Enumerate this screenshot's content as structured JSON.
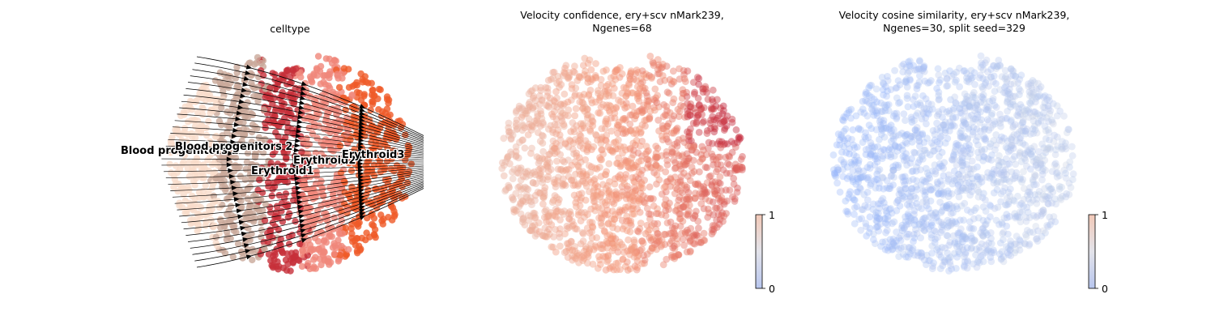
{
  "chart_data": [
    {
      "type": "scatter",
      "title": "celltype",
      "legend": "on data",
      "colorbar": null,
      "overlay": "velocity streamlines",
      "clusters": [
        {
          "name": "Blood progenitors 1",
          "color": "#f9dccb"
        },
        {
          "name": "Blood progenitors 2",
          "color": "#c9a99a"
        },
        {
          "name": "Erythroid1",
          "color": "#c72f3a"
        },
        {
          "name": "Erythroid2",
          "color": "#f0877a"
        },
        {
          "name": "Erythroid3",
          "color": "#ef5a28"
        }
      ]
    },
    {
      "type": "scatter",
      "title_lines": [
        "Velocity confidence, ery+scv nMark239,",
        "Ngenes=68"
      ],
      "colormap": "coolwarm",
      "value_range": [
        0,
        1
      ],
      "colorbar_ticks": [
        "1",
        "0"
      ],
      "dominant_value_range": [
        0.7,
        0.95
      ]
    },
    {
      "type": "scatter",
      "title_lines": [
        "Velocity cosine similarity, ery+scv nMark239,",
        "Ngenes=30, split seed=329"
      ],
      "colormap": "coolwarm",
      "value_range": [
        0,
        1
      ],
      "colorbar_ticks": [
        "1",
        "0"
      ],
      "dominant_value_range": [
        0.2,
        0.5
      ]
    }
  ]
}
